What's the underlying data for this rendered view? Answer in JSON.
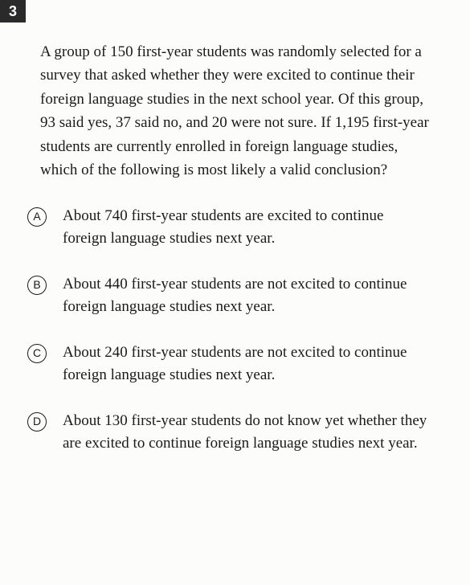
{
  "question": {
    "number": "3",
    "text": "A group of 150 first-year students was randomly selected for a survey that asked whether they were excited to continue their foreign language studies in the next school year. Of this group, 93 said yes, 37 said no, and 20 were not sure. If 1,195 first-year students are currently enrolled in foreign language studies, which of the following is most likely a valid conclusion?"
  },
  "choices": [
    {
      "letter": "A",
      "text": "About 740 first-year students are excited to continue foreign language studies next year."
    },
    {
      "letter": "B",
      "text": "About 440 first-year students are not excited to continue foreign language studies next year."
    },
    {
      "letter": "C",
      "text": "About 240 first-year students are not excited to continue foreign language studies next year."
    },
    {
      "letter": "D",
      "text": "About 130 first-year students do not know yet whether they are excited to continue foreign language studies next year."
    }
  ],
  "style": {
    "background_color": "#fcfcfa",
    "text_color": "#1a1a1a",
    "number_badge_bg": "#2a2a2a",
    "number_badge_fg": "#ffffff",
    "body_fontsize": 19,
    "letter_fontsize": 14,
    "line_height": 1.55
  }
}
